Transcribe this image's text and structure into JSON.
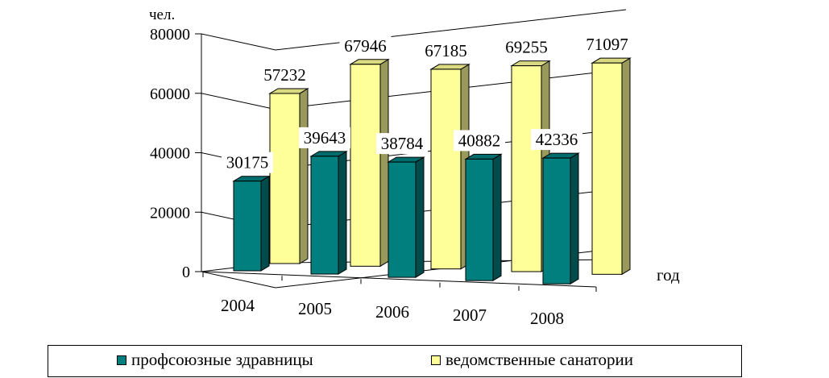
{
  "chart_data": {
    "type": "bar",
    "y_unit_label": "чел.",
    "x_unit_label": "год",
    "categories": [
      "2004",
      "2005",
      "2006",
      "2007",
      "2008"
    ],
    "ylim": [
      0,
      80000
    ],
    "yticks": [
      "0",
      "20000",
      "40000",
      "60000",
      "80000"
    ],
    "yticks_values": [
      0,
      20000,
      40000,
      60000,
      80000
    ],
    "series": [
      {
        "name": "профсоюзные здравницы",
        "values": [
          30175,
          39643,
          38784,
          40882,
          42336
        ],
        "labels": [
          "30175",
          "39643",
          "38784",
          "40882",
          "42336"
        ],
        "color": "#007f7f"
      },
      {
        "name": "ведомственные санатории",
        "values": [
          57232,
          67946,
          67185,
          69255,
          71097
        ],
        "labels": [
          "57232",
          "67946",
          "67185",
          "69255",
          "71097"
        ],
        "color": "#ffff99"
      }
    ],
    "grid": true,
    "legend_position": "bottom"
  }
}
